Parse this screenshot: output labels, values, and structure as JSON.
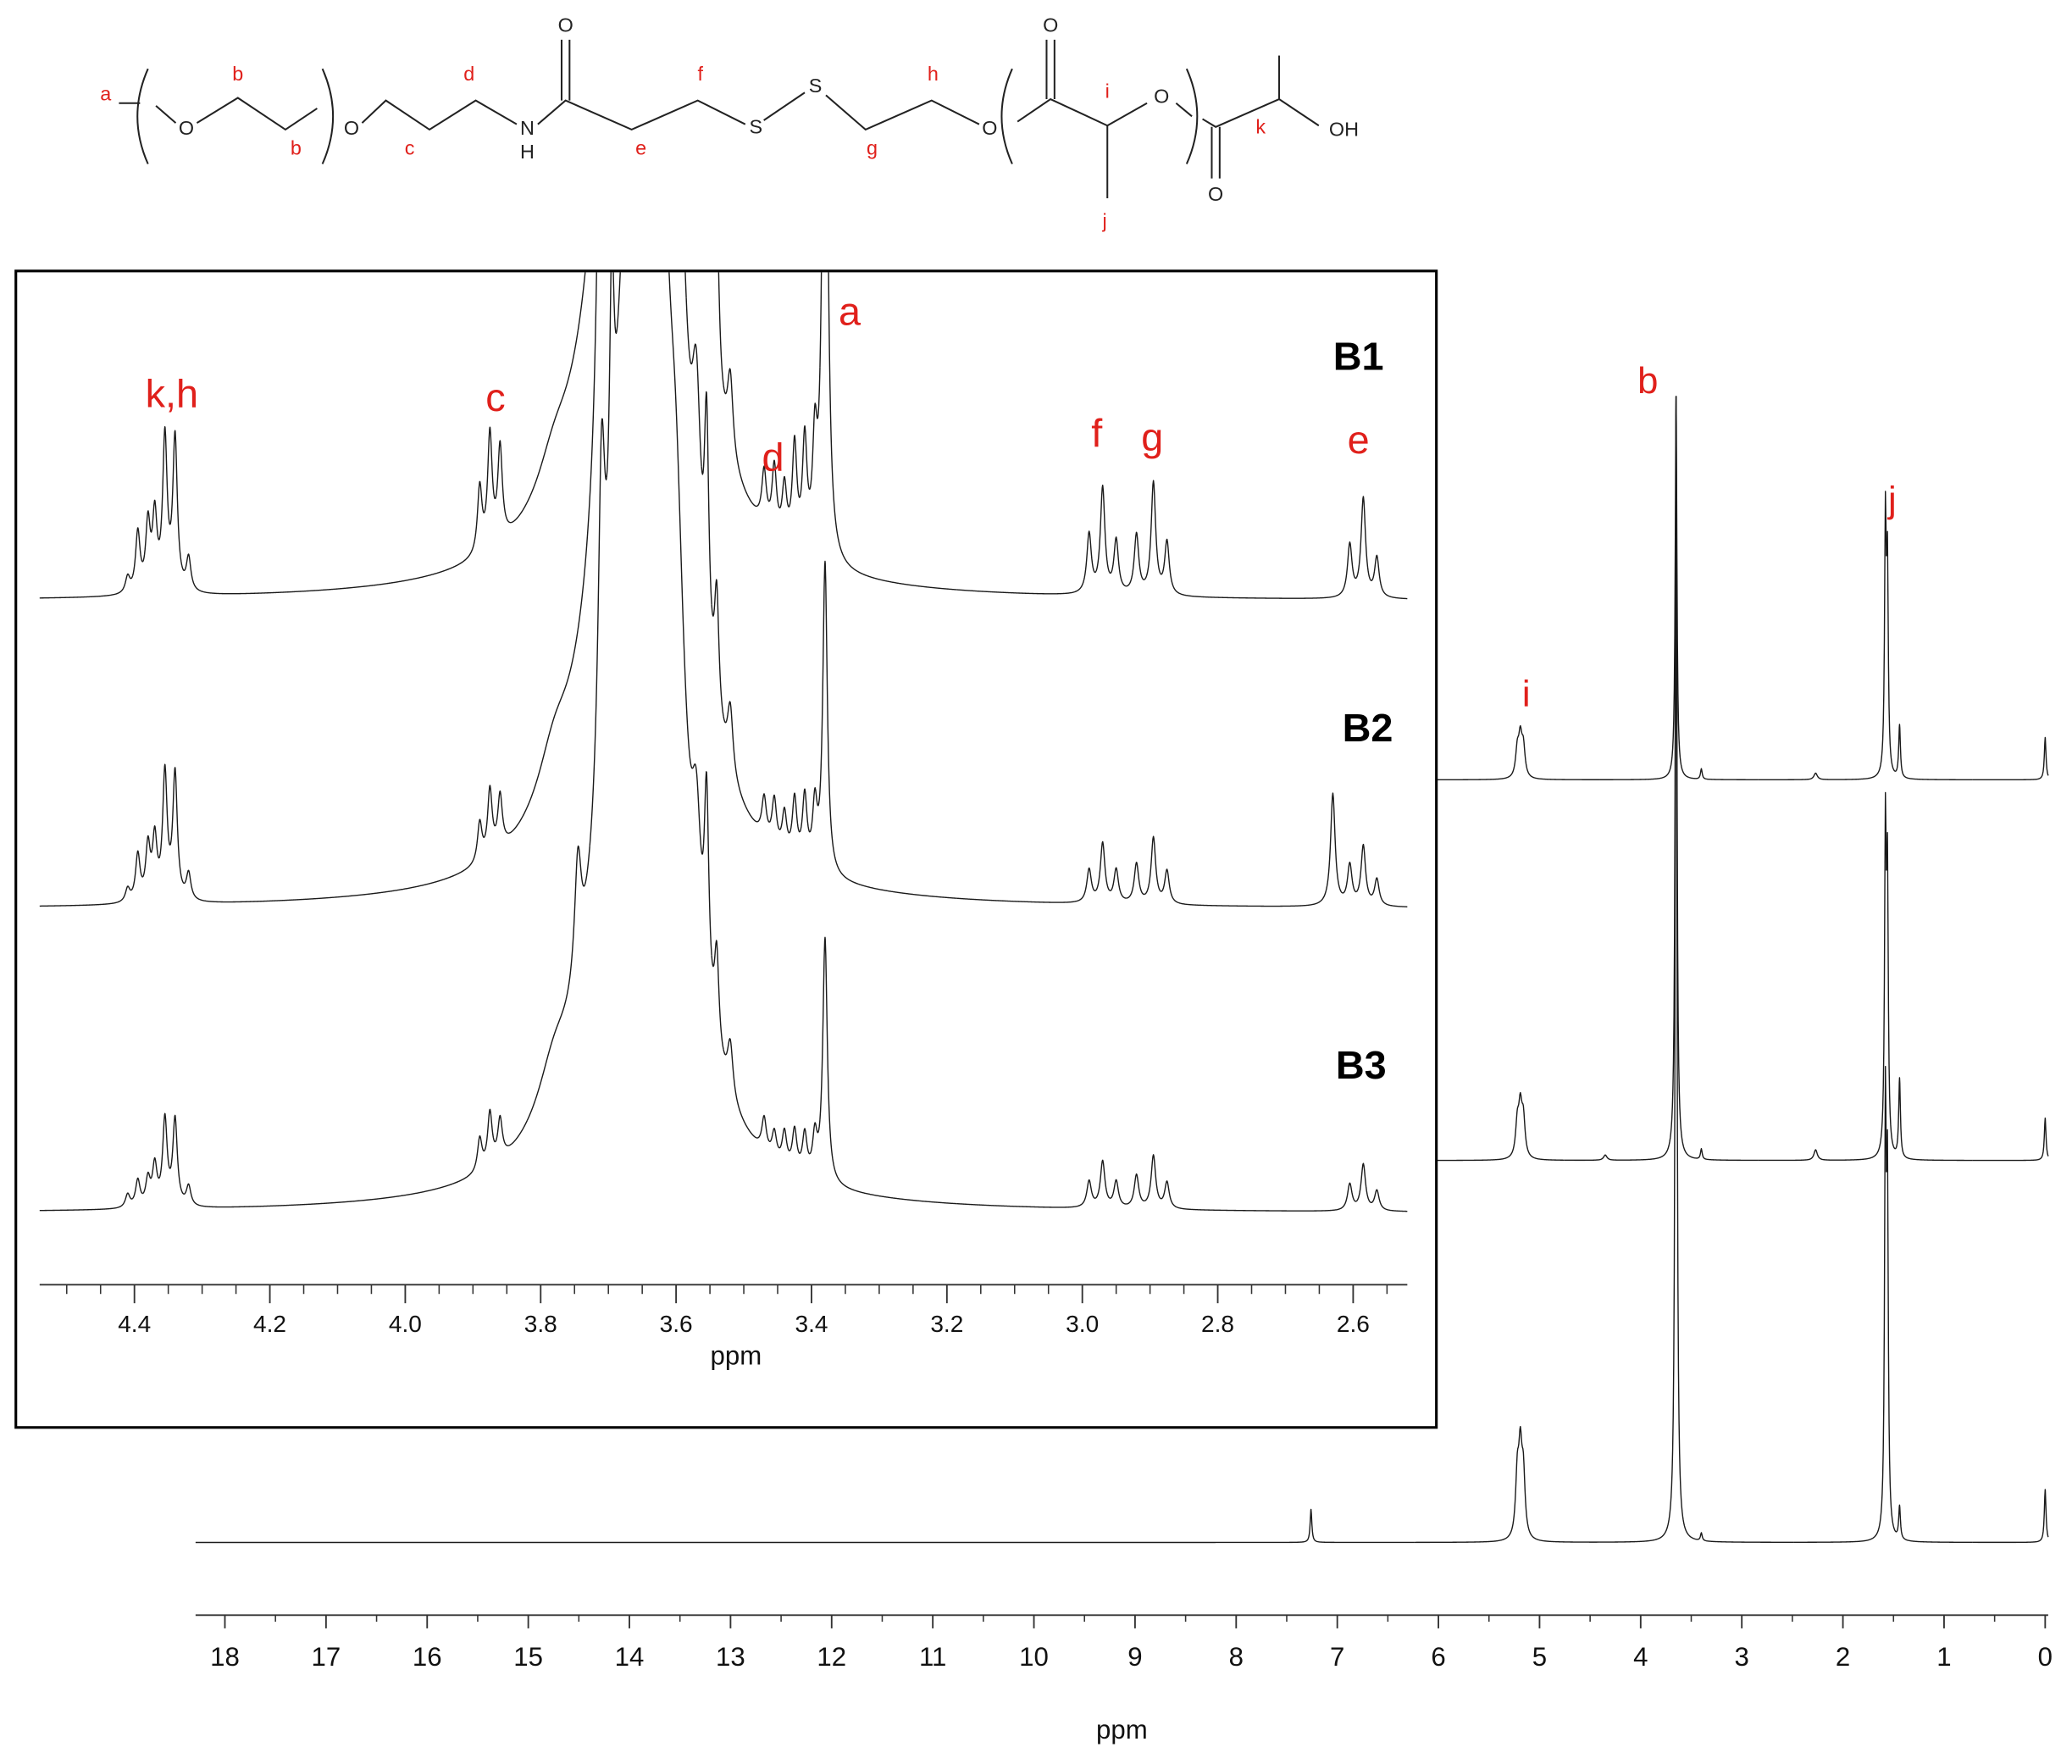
{
  "structure": {
    "labels": [
      "a",
      "b",
      "b",
      "c",
      "d",
      "e",
      "f",
      "g",
      "h",
      "i",
      "j",
      "k"
    ],
    "atoms": [
      "O",
      "O",
      "N",
      "H",
      "O",
      "S",
      "S",
      "O",
      "O",
      "O",
      "O",
      "OH"
    ]
  },
  "chart_data": [
    {
      "type": "spectrum",
      "xlabel": "ppm",
      "xlim": [
        18.29,
        -0.03
      ],
      "xticks": [
        18,
        17,
        16,
        15,
        14,
        13,
        12,
        11,
        10,
        9,
        8,
        7,
        6,
        5,
        4,
        3,
        2,
        1,
        0
      ],
      "series": [
        {
          "x": [
            5.22,
            5.19,
            5.16,
            3.65,
            3.4,
            2.27,
            1.58,
            1.56,
            1.44,
            0
          ],
          "values": [
            20,
            28,
            22,
            290,
            8,
            5,
            188,
            150,
            40,
            32
          ],
          "widths": [
            0.02,
            0.02,
            0.02,
            0.01,
            0.01,
            0.02,
            0.01,
            0.01,
            0.01,
            0.01
          ]
        },
        {
          "x": [
            5.22,
            5.19,
            5.16,
            4.35,
            3.65,
            3.4,
            2.27,
            1.58,
            1.56,
            1.44,
            0
          ],
          "values": [
            25,
            35,
            28,
            4,
            578,
            8,
            8,
            238,
            200,
            60,
            32
          ],
          "widths": [
            0.02,
            0.02,
            0.02,
            0.02,
            0.01,
            0.01,
            0.02,
            0.01,
            0.01,
            0.01,
            0.01
          ]
        },
        {
          "x": [
            7.26,
            5.22,
            5.19,
            5.16,
            3.65,
            3.4,
            1.58,
            1.56,
            1.44,
            0
          ],
          "values": [
            25,
            45,
            60,
            45,
            867,
            6,
            310,
            250,
            25,
            40
          ],
          "widths": [
            0.01,
            0.02,
            0.02,
            0.02,
            0.01,
            0.01,
            0.01,
            0.01,
            0.01,
            0.01
          ]
        }
      ],
      "annotations": [
        "b",
        "i",
        "j"
      ]
    },
    {
      "type": "spectrum",
      "xlabel": "ppm",
      "xlim": [
        4.54,
        2.52
      ],
      "xticks": [
        4.4,
        4.2,
        {
          "value": 4,
          "label": "4.0"
        },
        3.8,
        3.6,
        3.4,
        3.2,
        {
          "value": 3,
          "label": "3.0"
        },
        2.8,
        2.6
      ],
      "series": [
        {
          "name": "B1",
          "x": [
            4.41,
            4.395,
            4.38,
            4.37,
            4.355,
            4.34,
            4.32,
            3.89,
            3.875,
            3.86,
            3.78,
            3.71,
            3.66,
            3.63,
            3.6,
            3.57,
            3.555,
            3.54,
            3.52,
            3.47,
            3.455,
            3.44,
            3.425,
            3.41,
            3.395,
            3.38,
            2.99,
            2.97,
            2.95,
            2.92,
            2.895,
            2.875,
            2.605,
            2.585,
            2.565
          ],
          "values": [
            12,
            45,
            50,
            55,
            115,
            115,
            25,
            50,
            85,
            70,
            30,
            140,
            900,
            700,
            300,
            170,
            300,
            130,
            60,
            40,
            50,
            40,
            75,
            80,
            75,
            590,
            45,
            80,
            40,
            45,
            85,
            40,
            40,
            75,
            30
          ],
          "widths": [
            0.004,
            0.004,
            0.004,
            0.004,
            0.004,
            0.004,
            0.004,
            0.004,
            0.004,
            0.004,
            0.03,
            0.006,
            0.04,
            0.02,
            0.015,
            0.008,
            0.004,
            0.004,
            0.005,
            0.004,
            0.004,
            0.004,
            0.004,
            0.004,
            0.004,
            0.004,
            0.004,
            0.004,
            0.004,
            0.004,
            0.004,
            0.004,
            0.004,
            0.004,
            0.004
          ]
        },
        {
          "name": "B2",
          "x": [
            4.41,
            4.395,
            4.38,
            4.37,
            4.355,
            4.34,
            4.32,
            3.89,
            3.875,
            3.86,
            3.78,
            3.71,
            3.66,
            3.63,
            3.6,
            3.57,
            3.555,
            3.54,
            3.52,
            3.47,
            3.455,
            3.44,
            3.425,
            3.41,
            3.395,
            3.38,
            2.99,
            2.97,
            2.95,
            2.92,
            2.895,
            2.875,
            2.63,
            2.605,
            2.585,
            2.565
          ],
          "values": [
            10,
            35,
            40,
            45,
            95,
            95,
            20,
            30,
            50,
            40,
            40,
            370,
            900,
            600,
            250,
            150,
            170,
            90,
            50,
            30,
            35,
            30,
            45,
            50,
            45,
            235,
            25,
            45,
            25,
            30,
            50,
            25,
            85,
            30,
            45,
            20
          ],
          "widths": [
            0.004,
            0.004,
            0.004,
            0.004,
            0.004,
            0.004,
            0.004,
            0.004,
            0.004,
            0.004,
            0.03,
            0.006,
            0.04,
            0.02,
            0.015,
            0.008,
            0.004,
            0.004,
            0.005,
            0.004,
            0.004,
            0.004,
            0.004,
            0.004,
            0.004,
            0.004,
            0.004,
            0.004,
            0.004,
            0.004,
            0.004,
            0.004,
            0.004,
            0.004,
            0.004,
            0.004
          ]
        },
        {
          "name": "B3",
          "x": [
            4.41,
            4.395,
            4.38,
            4.37,
            4.355,
            4.34,
            4.32,
            3.89,
            3.875,
            3.86,
            3.78,
            3.745,
            3.71,
            3.695,
            3.66,
            3.63,
            3.6,
            3.57,
            3.555,
            3.54,
            3.52,
            3.47,
            3.455,
            3.44,
            3.425,
            3.41,
            3.395,
            3.38,
            2.99,
            2.97,
            2.95,
            2.92,
            2.895,
            2.875,
            2.605,
            2.585,
            2.565
          ],
          "values": [
            10,
            20,
            20,
            30,
            65,
            65,
            15,
            25,
            40,
            30,
            40,
            90,
            230,
            200,
            800,
            500,
            200,
            100,
            150,
            70,
            40,
            25,
            20,
            25,
            30,
            30,
            30,
            185,
            20,
            35,
            20,
            25,
            40,
            20,
            20,
            35,
            15
          ],
          "widths": [
            0.004,
            0.004,
            0.004,
            0.004,
            0.004,
            0.004,
            0.004,
            0.004,
            0.004,
            0.004,
            0.03,
            0.006,
            0.006,
            0.004,
            0.04,
            0.02,
            0.015,
            0.008,
            0.004,
            0.004,
            0.005,
            0.004,
            0.004,
            0.004,
            0.004,
            0.004,
            0.004,
            0.004,
            0.004,
            0.004,
            0.004,
            0.004,
            0.004,
            0.004,
            0.004,
            0.004,
            0.004
          ]
        }
      ],
      "annotations": [
        "k,h",
        "c",
        "d",
        "a",
        "f",
        "g",
        "e"
      ]
    }
  ]
}
